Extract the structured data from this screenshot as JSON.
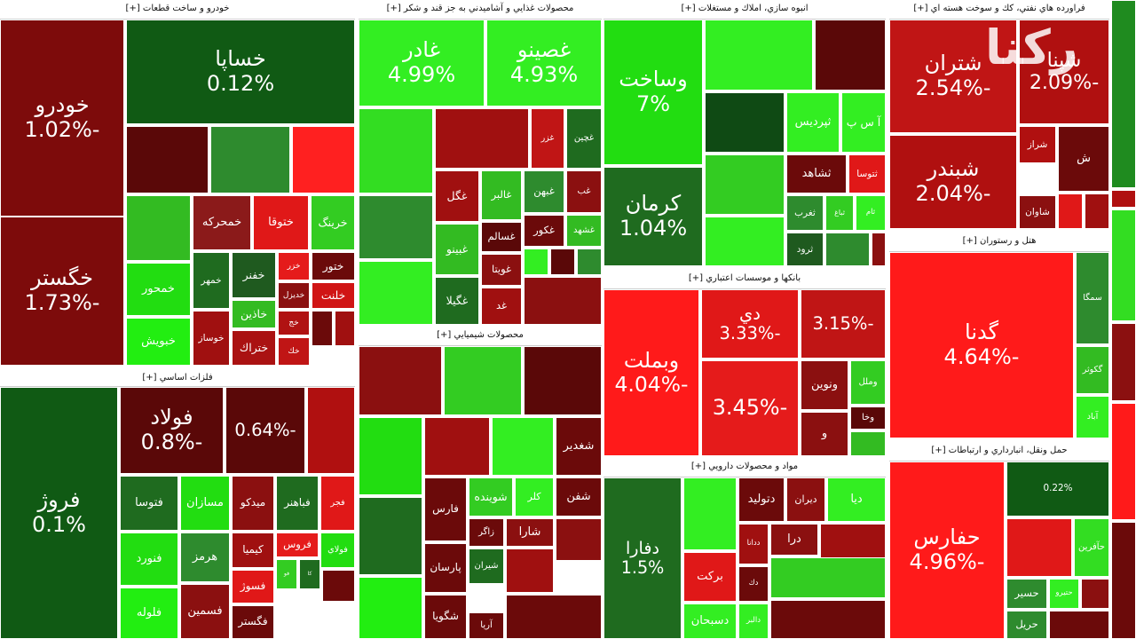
{
  "watermark": "ركنا",
  "sectors": [
    {
      "title": "خودرو و ساخت قطعات [+]",
      "tiles": [
        {
          "name": "خودرو",
          "change": "-1.02%",
          "color": "#7d0b0b"
        },
        {
          "name": "خگستر",
          "change": "-1.73%",
          "color": "#7d0b0b"
        },
        {
          "name": "خساپا",
          "change": "0.12%",
          "color": "#105a14"
        },
        {
          "color": "#5a0808"
        },
        {
          "color": "#2e8b2e"
        },
        {
          "color": "#ff2020"
        },
        {
          "color": "#33bb22"
        },
        {
          "name": "خمحركه",
          "color": "#8b1a1a"
        },
        {
          "name": "ختوقا",
          "color": "#e01818"
        },
        {
          "name": "خرينگ",
          "color": "#33cc22"
        },
        {
          "name": "خمحور",
          "color": "#22dd11"
        },
        {
          "name": "خبويش",
          "color": "#22ee11"
        },
        {
          "name": "خمهر",
          "color": "#1f6b1f"
        },
        {
          "name": "خفنر",
          "color": "#1f5a1f"
        },
        {
          "name": "خزر",
          "color": "#e51b1b"
        },
        {
          "name": "ختور",
          "color": "#6b0a0a"
        },
        {
          "name": "خديزل",
          "color": "#8b1010"
        },
        {
          "name": "خلنت",
          "color": "#d01515"
        },
        {
          "name": "خاذين",
          "color": "#33bb22"
        },
        {
          "name": "خوساز",
          "color": "#a01010"
        },
        {
          "name": "ختراك",
          "color": "#aa1212"
        },
        {
          "name": "خج",
          "color": "#b01212"
        },
        {
          "name": "خك",
          "color": "#c01515"
        },
        {
          "color": "#6b0a0a"
        },
        {
          "color": "#a01010"
        }
      ]
    },
    {
      "title": "فلزات اساسي [+]",
      "tiles": [
        {
          "name": "فروژ",
          "change": "0.1%",
          "color": "#105a14"
        },
        {
          "name": "فولاد",
          "change": "-0.8%",
          "color": "#5a0808"
        },
        {
          "change": "-0.64%",
          "color": "#5a0808"
        },
        {
          "color": "#b01010"
        },
        {
          "name": "فتوسا",
          "color": "#1f6b1f"
        },
        {
          "name": "مسازان",
          "color": "#22dd11"
        },
        {
          "name": "ميدكو",
          "color": "#8b1010"
        },
        {
          "name": "فباهنر",
          "color": "#1f6b1f"
        },
        {
          "name": "فجر",
          "color": "#e01818"
        },
        {
          "name": "فنورد",
          "color": "#22dd11"
        },
        {
          "name": "هرمز",
          "color": "#2e8b2e"
        },
        {
          "name": "كيميا",
          "color": "#a01010"
        },
        {
          "name": "فروس",
          "color": "#e51b1b"
        },
        {
          "name": "فولاي",
          "color": "#22dd11"
        },
        {
          "name": "فلوله",
          "color": "#22ee11"
        },
        {
          "name": "فسوژ",
          "color": "#e01818"
        },
        {
          "name": "فسمين",
          "color": "#8b1010"
        },
        {
          "name": "فگستر",
          "color": "#6b0a0a"
        },
        {
          "name": "فو",
          "color": "#33cc22"
        },
        {
          "name": "كا",
          "color": "#1f6b1f"
        },
        {
          "color": "#6b0a0a"
        },
        {
          "color": "#33bb22"
        }
      ]
    },
    {
      "title": "محصولات غذايي و آشاميدني به جز قند و شكر [+]",
      "tiles": [
        {
          "name": "غادر",
          "change": "4.99%",
          "color": "#33ee22"
        },
        {
          "name": "غصينو",
          "change": "4.93%",
          "color": "#33ee22"
        },
        {
          "color": "#33dd22"
        },
        {
          "color": "#a01010"
        },
        {
          "name": "غزر",
          "color": "#c01515"
        },
        {
          "name": "غچين",
          "color": "#1f6b1f"
        },
        {
          "color": "#2e8b2e"
        },
        {
          "name": "غگل",
          "color": "#a01010"
        },
        {
          "name": "غالبر",
          "color": "#33bb22"
        },
        {
          "name": "غبهن",
          "color": "#2e8b2e"
        },
        {
          "name": "غب",
          "color": "#8b1010"
        },
        {
          "name": "غشهد",
          "color": "#33bb22"
        },
        {
          "color": "#33ee22"
        },
        {
          "name": "غبينو",
          "color": "#33bb22"
        },
        {
          "name": "غسالم",
          "color": "#5a0808"
        },
        {
          "name": "غكور",
          "color": "#6b0a0a"
        },
        {
          "name": "غويتا",
          "color": "#8b1010"
        },
        {
          "name": "غگيلا",
          "color": "#1f6b1f"
        },
        {
          "name": "غد",
          "color": "#a01010"
        },
        {
          "color": "#33ee22"
        },
        {
          "color": "#5a0808"
        },
        {
          "color": "#2e8b2e"
        },
        {
          "color": "#8b1010"
        }
      ]
    },
    {
      "title": "محصولات شيميايي [+]",
      "tiles": [
        {
          "color": "#8b1010"
        },
        {
          "color": "#33cc22"
        },
        {
          "color": "#5a0808"
        },
        {
          "color": "#22dd11"
        },
        {
          "color": "#a01010"
        },
        {
          "color": "#33ee22"
        },
        {
          "name": "شغدير",
          "color": "#6b0a0a"
        },
        {
          "color": "#1f6b1f"
        },
        {
          "name": "فارس",
          "color": "#6b0a0a"
        },
        {
          "name": "شوينده",
          "color": "#33cc22"
        },
        {
          "name": "كلر",
          "color": "#33ee22"
        },
        {
          "name": "شفن",
          "color": "#6b0a0a"
        },
        {
          "name": "زاگر",
          "color": "#6b0a0a"
        },
        {
          "name": "شارا",
          "color": "#8b1010"
        },
        {
          "name": "پارسان",
          "color": "#6b0a0a"
        },
        {
          "name": "شيران",
          "color": "#1f6b1f"
        },
        {
          "color": "#22ee11"
        },
        {
          "name": "شگويا",
          "color": "#6b0a0a"
        },
        {
          "name": "آريا",
          "color": "#6b0a0a"
        },
        {
          "color": "#a01010"
        },
        {
          "color": "#8b1010"
        },
        {
          "color": "#6b0a0a"
        }
      ]
    },
    {
      "title": "انبوه سازي، املاك و مستغلات [+]",
      "tiles": [
        {
          "name": "وساخت",
          "change": "7%",
          "color": "#22dd11"
        },
        {
          "color": "#33ee22"
        },
        {
          "color": "#5a0808"
        },
        {
          "color": "#0f4a14"
        },
        {
          "name": "ثپرديس",
          "color": "#33ee22"
        },
        {
          "name": "آ س پ",
          "color": "#33ee22"
        },
        {
          "name": "كرمان",
          "change": "1.04%",
          "color": "#1f6b1f"
        },
        {
          "color": "#33cc22"
        },
        {
          "name": "ثشاهد",
          "color": "#6b0a0a"
        },
        {
          "name": "ثتوسا",
          "color": "#e01818"
        },
        {
          "color": "#33ee22"
        },
        {
          "name": "ثغرب",
          "color": "#2e8b2e"
        },
        {
          "name": "ثباغ",
          "color": "#33cc22"
        },
        {
          "name": "ثام",
          "color": "#33ee22"
        },
        {
          "name": "ثرود",
          "color": "#1f5a1f"
        },
        {
          "color": "#2e8b2e"
        },
        {
          "color": "#8b1010"
        }
      ]
    },
    {
      "title": "بانكها و موسسات اعتباري [+]",
      "tiles": [
        {
          "name": "وبملت",
          "change": "-4.04%",
          "color": "#ff1a1a"
        },
        {
          "name": "دي",
          "change": "-3.33%",
          "color": "#e01818"
        },
        {
          "change": "-3.15%",
          "color": "#c01515"
        },
        {
          "change": "-3.45%",
          "color": "#e51b1b"
        },
        {
          "name": "ونوين",
          "color": "#8b1010"
        },
        {
          "name": "وملل",
          "color": "#33cc22"
        },
        {
          "name": "وخا",
          "color": "#5a0808"
        },
        {
          "name": "و",
          "color": "#8b1010"
        },
        {
          "color": "#33bb22"
        }
      ]
    },
    {
      "title": "مواد و محصولات دارويي [+]",
      "tiles": [
        {
          "name": "دفارا",
          "change": "1.5%",
          "color": "#1f6b1f"
        },
        {
          "color": "#33ee22"
        },
        {
          "name": "دتوليد",
          "color": "#6b0a0a"
        },
        {
          "name": "ديران",
          "color": "#8b1010"
        },
        {
          "name": "ديا",
          "color": "#33ee22"
        },
        {
          "name": "بركت",
          "color": "#e01818"
        },
        {
          "name": "دسبحان",
          "color": "#33ee22"
        },
        {
          "name": "ددانا",
          "color": "#a01010"
        },
        {
          "name": "درا",
          "color": "#8b1010"
        },
        {
          "name": "دالبر",
          "color": "#33ee22"
        },
        {
          "name": "دك",
          "color": "#6b0a0a"
        },
        {
          "color": "#a01010"
        },
        {
          "color": "#33cc22"
        },
        {
          "color": "#6b0a0a"
        }
      ]
    },
    {
      "title": "فراورده هاي نفتي، كك و سوخت هسته اي [+]",
      "tiles": [
        {
          "name": "شتران",
          "change": "-2.54%",
          "color": "#c01515"
        },
        {
          "name": "شپنا",
          "change": "-2.09%",
          "color": "#b01010"
        },
        {
          "name": "شبندر",
          "change": "-2.04%",
          "color": "#b01010"
        },
        {
          "name": "شراز",
          "color": "#b01010"
        },
        {
          "name": "شاوان",
          "color": "#8b1010"
        },
        {
          "name": "ش",
          "color": "#6b0a0a"
        },
        {
          "color": "#e01818"
        },
        {
          "color": "#a01010"
        }
      ]
    },
    {
      "title": "هتل و رستوران [+]",
      "tiles": [
        {
          "name": "گدنا",
          "change": "-4.64%",
          "color": "#ff1a1a"
        },
        {
          "name": "سمگا",
          "color": "#2e8b2e"
        },
        {
          "name": "گكوثر",
          "color": "#33bb22"
        },
        {
          "name": "آباد",
          "color": "#33ee22"
        }
      ]
    },
    {
      "title": "حمل ونقل، انبارداري و ارتباطات [+]",
      "tiles": [
        {
          "name": "حفارس",
          "change": "-4.96%",
          "color": "#ff1a1a"
        },
        {
          "change": "0.22%",
          "color": "#105a14"
        },
        {
          "color": "#e01818"
        },
        {
          "name": "حآفرين",
          "color": "#33dd22"
        },
        {
          "name": "حسير",
          "color": "#2e8b2e"
        },
        {
          "name": "حتيرو",
          "color": "#33ee22"
        },
        {
          "name": "حريل",
          "color": "#2e8b2e"
        },
        {
          "color": "#8b1010"
        },
        {
          "color": "#6b0a0a"
        }
      ]
    }
  ],
  "edge_tiles": [
    {
      "color": "#1f8b1f"
    },
    {
      "color": "#b01010"
    },
    {
      "color": "#33dd22"
    },
    {
      "color": "#8b1010"
    },
    {
      "color": "#ff1a1a"
    },
    {
      "color": "#6b0a0a"
    }
  ]
}
